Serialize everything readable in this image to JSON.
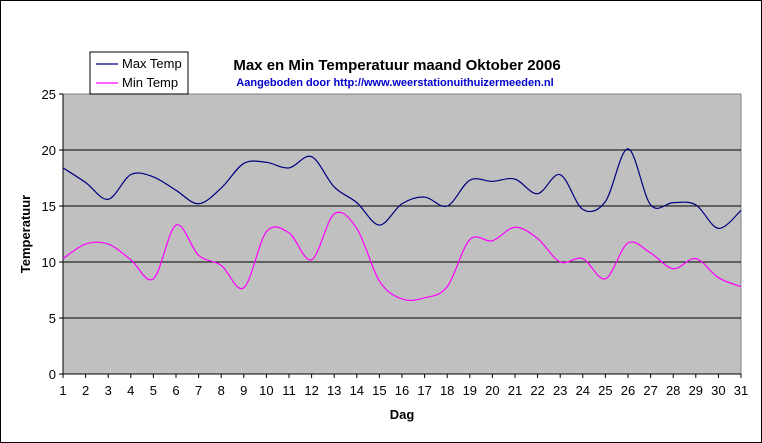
{
  "chart_data": {
    "type": "line",
    "title": "Max en Min Temperatuur maand Oktober 2006",
    "subtitle": "Aangeboden door http://www.weerstationuithuizermeeden.nl",
    "xlabel": "Dag",
    "ylabel": "Temperatuur",
    "categories": [
      1,
      2,
      3,
      4,
      5,
      6,
      7,
      8,
      9,
      10,
      11,
      12,
      13,
      14,
      15,
      16,
      17,
      18,
      19,
      20,
      21,
      22,
      23,
      24,
      25,
      26,
      27,
      28,
      29,
      30,
      31
    ],
    "ylim": [
      0,
      25
    ],
    "yticks": [
      0,
      5,
      10,
      15,
      20,
      25
    ],
    "grid": true,
    "legend_position": "top-left",
    "plot_background": "#c0c0c0",
    "series": [
      {
        "name": "Max Temp",
        "color": "#000080",
        "values": [
          18.4,
          17.1,
          15.6,
          17.8,
          17.6,
          16.4,
          15.2,
          16.6,
          18.8,
          18.9,
          18.4,
          19.4,
          16.7,
          15.3,
          13.3,
          15.2,
          15.8,
          15.0,
          17.3,
          17.2,
          17.4,
          16.1,
          17.8,
          14.7,
          15.4,
          20.1,
          15.1,
          15.3,
          15.1,
          13.0,
          14.6
        ]
      },
      {
        "name": "Min Temp",
        "color": "#ff00ff",
        "values": [
          10.3,
          11.6,
          11.6,
          10.2,
          8.5,
          13.3,
          10.6,
          9.7,
          7.7,
          12.7,
          12.6,
          10.2,
          14.3,
          13.0,
          8.3,
          6.7,
          6.8,
          7.8,
          12.0,
          11.9,
          13.1,
          12.1,
          10.0,
          10.3,
          8.5,
          11.7,
          10.8,
          9.4,
          10.3,
          8.6,
          7.8
        ]
      }
    ]
  }
}
